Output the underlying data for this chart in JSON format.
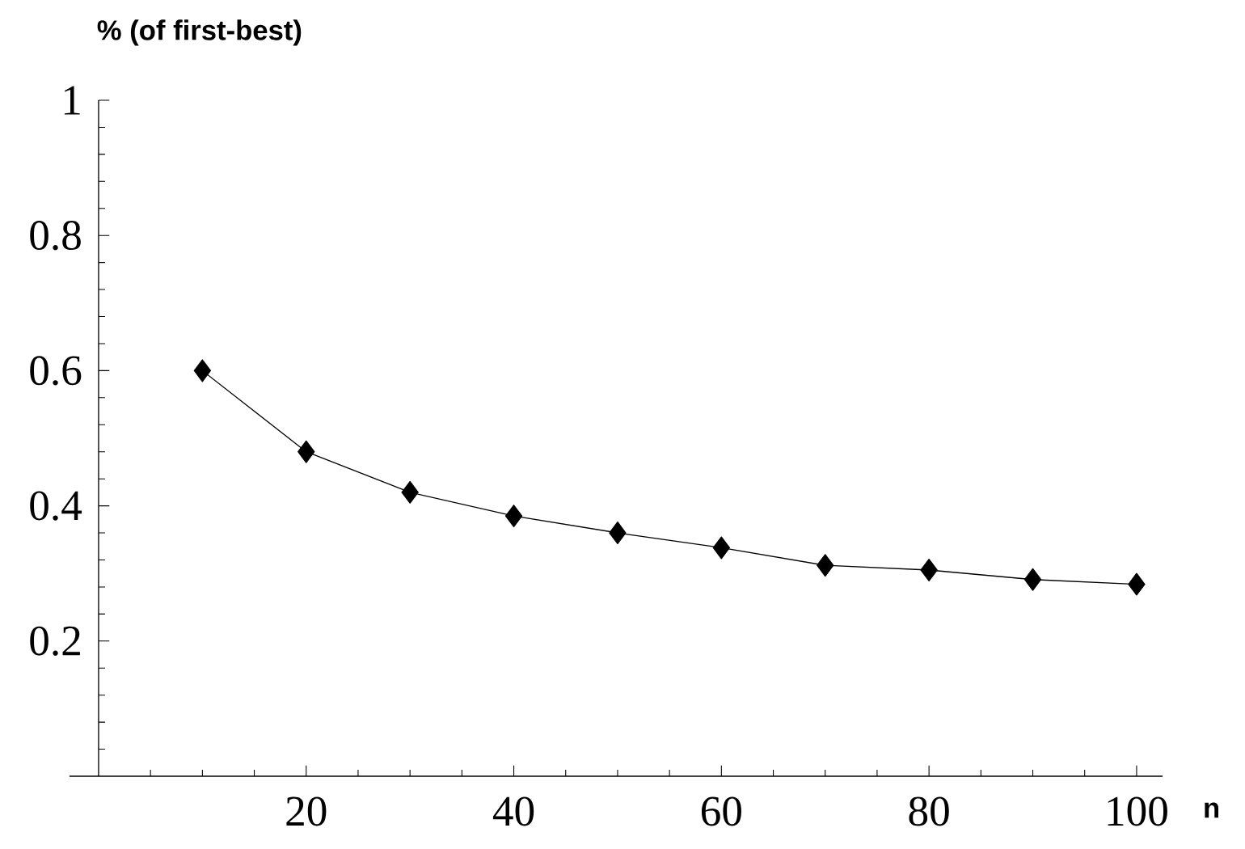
{
  "chart_data": {
    "type": "line",
    "xlabel": "n",
    "ylabel": "% (of first-best)",
    "x": [
      10,
      20,
      30,
      40,
      50,
      60,
      70,
      80,
      90,
      100
    ],
    "values": [
      0.6,
      0.48,
      0.42,
      0.385,
      0.36,
      0.338,
      0.312,
      0.305,
      0.291,
      0.284
    ],
    "color": "#000000",
    "marker": "diamond",
    "line_style": "solid",
    "xlim": [
      -2.8,
      102.5
    ],
    "ylim": [
      0,
      1
    ],
    "xticks": [
      {
        "value": 5,
        "label": null
      },
      {
        "value": 10,
        "label": null
      },
      {
        "value": 15,
        "label": null
      },
      20,
      {
        "value": 25,
        "label": null
      },
      {
        "value": 30,
        "label": null
      },
      {
        "value": 35,
        "label": null
      },
      40,
      {
        "value": 45,
        "label": null
      },
      {
        "value": 50,
        "label": null
      },
      {
        "value": 55,
        "label": null
      },
      60,
      {
        "value": 65,
        "label": null
      },
      {
        "value": 70,
        "label": null
      },
      {
        "value": 75,
        "label": null
      },
      80,
      {
        "value": 85,
        "label": null
      },
      {
        "value": 90,
        "label": null
      },
      {
        "value": 95,
        "label": null
      },
      100
    ],
    "yticks": [
      {
        "value": 0.04,
        "label": null
      },
      {
        "value": 0.08,
        "label": null
      },
      {
        "value": 0.12,
        "label": null
      },
      {
        "value": 0.16,
        "label": null
      },
      0.2,
      {
        "value": 0.24,
        "label": null
      },
      {
        "value": 0.28,
        "label": null
      },
      {
        "value": 0.32,
        "label": null
      },
      {
        "value": 0.36,
        "label": null
      },
      0.4,
      {
        "value": 0.44,
        "label": null
      },
      {
        "value": 0.48,
        "label": null
      },
      {
        "value": 0.52,
        "label": null
      },
      {
        "value": 0.56,
        "label": null
      },
      0.6,
      {
        "value": 0.64,
        "label": null
      },
      {
        "value": 0.68,
        "label": null
      },
      {
        "value": 0.72,
        "label": null
      },
      {
        "value": 0.76,
        "label": null
      },
      0.8,
      {
        "value": 0.84,
        "label": null
      },
      {
        "value": 0.88,
        "label": null
      },
      {
        "value": 0.92,
        "label": null
      },
      {
        "value": 0.96,
        "label": null
      },
      1
    ]
  }
}
